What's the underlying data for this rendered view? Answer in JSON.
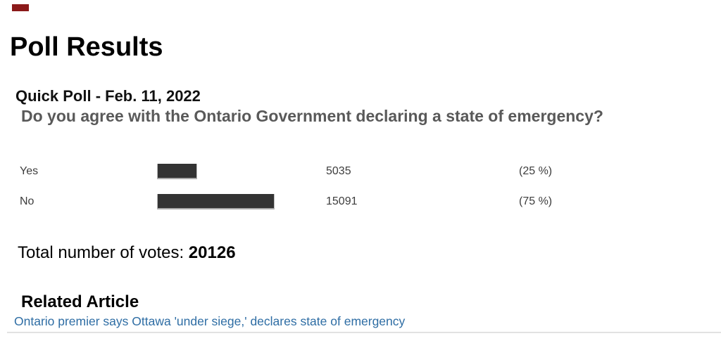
{
  "page": {
    "title": "Poll Results",
    "marker_color": "#8b1a1a"
  },
  "poll": {
    "heading": "Quick Poll - Feb. 11, 2022",
    "question": "Do you agree with the Ontario Government declaring a state of emergency?",
    "bar_color": "#333333",
    "options": [
      {
        "label": "Yes",
        "votes": "5035",
        "percent": 25,
        "percent_label": "(25 %)"
      },
      {
        "label": "No",
        "votes": "15091",
        "percent": 75,
        "percent_label": "(75 %)"
      }
    ],
    "total_label": "Total number of votes: ",
    "total_votes": "20126"
  },
  "related": {
    "heading": "Related Article",
    "link_text": "Ontario premier says Ottawa 'under siege,' declares state of emergency",
    "link_color": "#2e6da4"
  }
}
